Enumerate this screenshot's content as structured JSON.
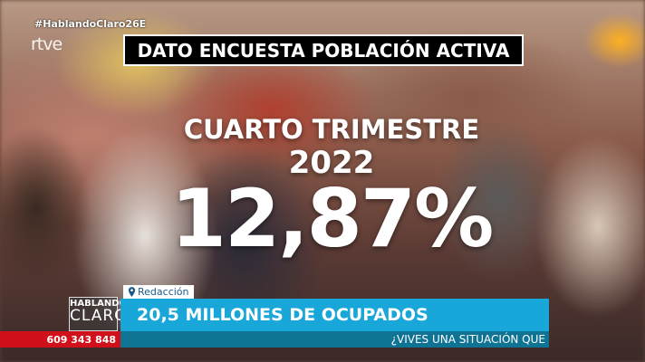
{
  "overlay": {
    "hashtag": "#HablandoClaro26E",
    "channel_logo": "rtve"
  },
  "headline": {
    "title": "DATO ENCUESTA POBLACIÓN ACTIVA",
    "line1": "CUARTO TRIMESTRE",
    "line2": "2022",
    "figure": "12,87%"
  },
  "lower_third": {
    "location_icon": "map-pin-icon",
    "location": "Redacción",
    "show_logo_top": "HABLANDO",
    "show_logo_bottom": "CLARO",
    "headline": "20,5 MILLONES DE OCUPADOS",
    "ticker": "¿VIVES UNA SITUACIÓN QUE",
    "phone": "609 343 848",
    "colors": {
      "blue": "#19a6d8",
      "teal": "#0f7394",
      "red": "#d0101a"
    }
  }
}
